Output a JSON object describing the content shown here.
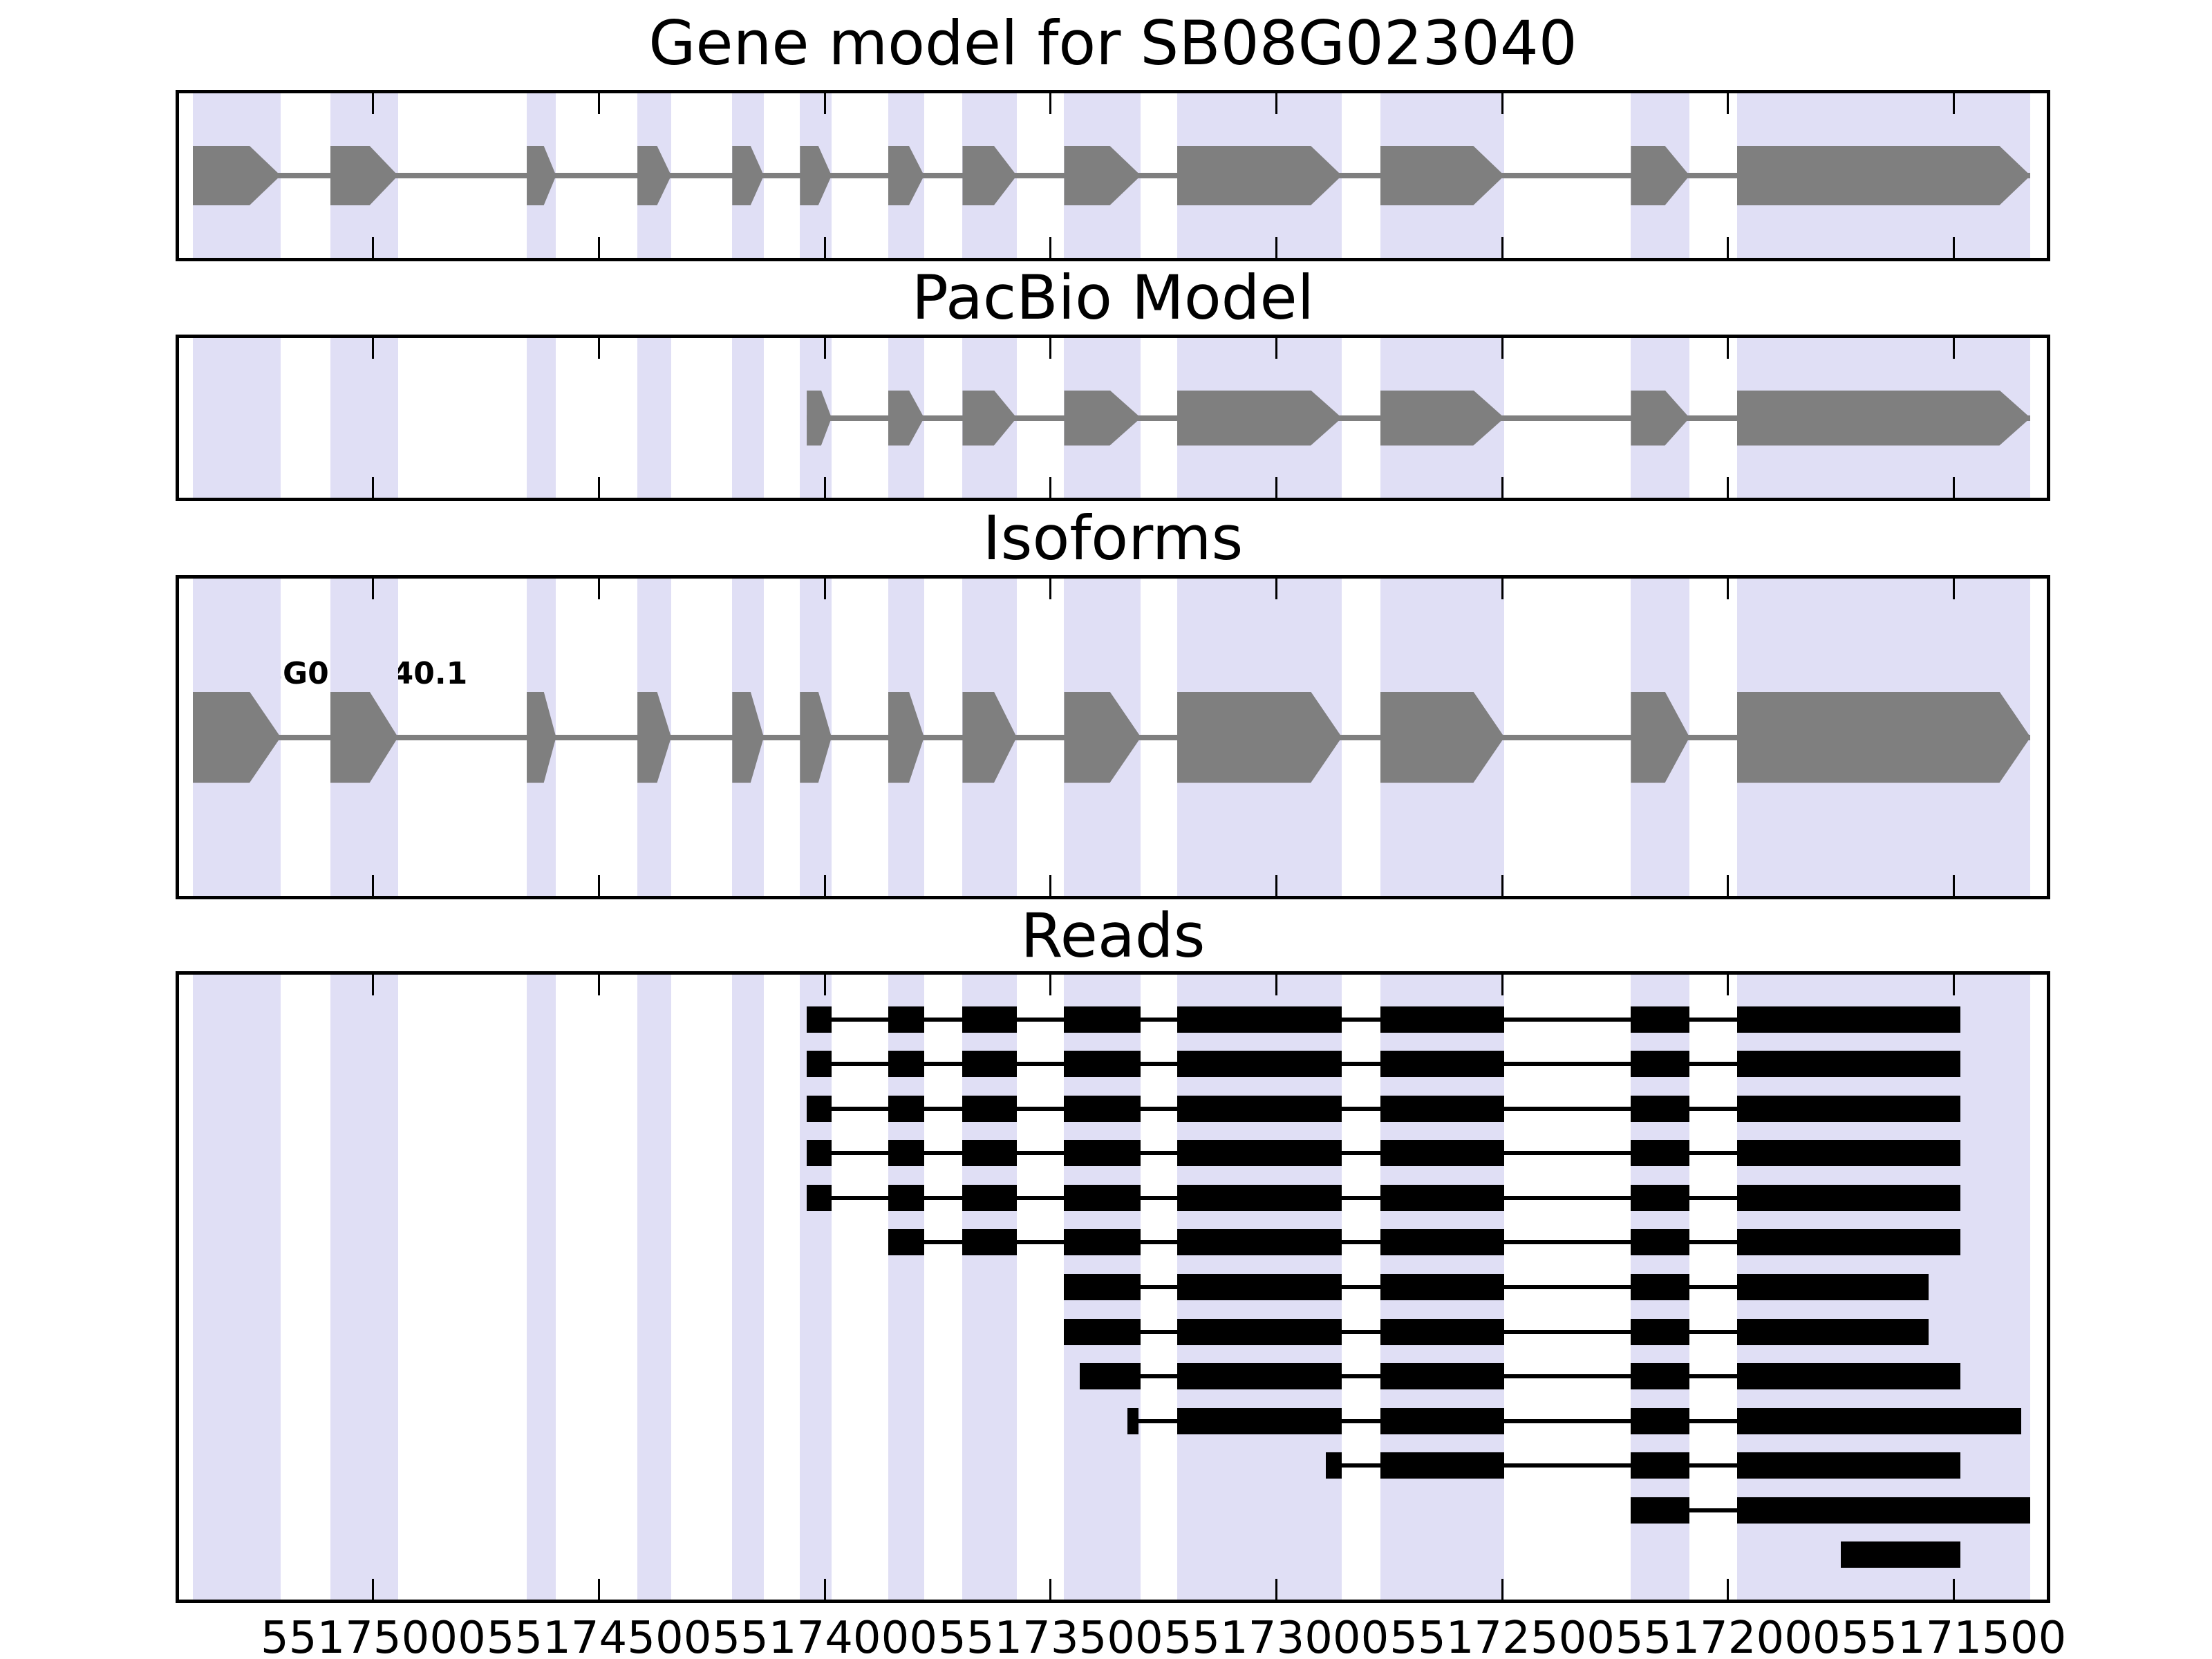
{
  "colors": {
    "exon_fill": "#7f7f7f",
    "intron_line": "#7f7f7f",
    "band_fill": "#e0dff5",
    "read_fill": "#000000",
    "spine": "#000000",
    "background": "#ffffff"
  },
  "chart_data": {
    "type": "other",
    "subtype": "genome-browser-gene-model-tracks",
    "arrow_direction": "right",
    "x_axis": {
      "range_left_bp": 55175430,
      "range_right_bp": 55171294,
      "direction": "coordinates-decrease-to-the-right",
      "tick_values": [
        55175000,
        55174500,
        55174000,
        55173500,
        55173000,
        55172500,
        55172000,
        55171500
      ],
      "tick_labels": [
        "55175000",
        "55174500",
        "55174000",
        "55173500",
        "55173000",
        "55172500",
        "55172000",
        "55171500"
      ]
    },
    "highlight_bands_bp": [
      [
        55175400,
        55175205
      ],
      [
        55175095,
        55174945
      ],
      [
        55174660,
        55174595
      ],
      [
        55174415,
        55174340
      ],
      [
        55174205,
        55174135
      ],
      [
        55174055,
        55173985
      ],
      [
        55173860,
        55173780
      ],
      [
        55173695,
        55173575
      ],
      [
        55173470,
        55173300
      ],
      [
        55173220,
        55172855
      ],
      [
        55172770,
        55172495
      ],
      [
        55172215,
        55172085
      ],
      [
        55171980,
        55171330
      ]
    ],
    "tracks": [
      {
        "title": "Gene model for SB08G023040",
        "kind": "gene-model",
        "exons_bp": [
          [
            55175400,
            55175205
          ],
          [
            55175095,
            55174945
          ],
          [
            55174660,
            55174595
          ],
          [
            55174415,
            55174340
          ],
          [
            55174205,
            55174135
          ],
          [
            55174055,
            55173985
          ],
          [
            55173860,
            55173780
          ],
          [
            55173695,
            55173575
          ],
          [
            55173470,
            55173300
          ],
          [
            55173220,
            55172855
          ],
          [
            55172770,
            55172495
          ],
          [
            55172215,
            55172085
          ],
          [
            55171980,
            55171330
          ]
        ]
      },
      {
        "title": "PacBio Model",
        "kind": "gene-model",
        "exons_bp": [
          [
            55174040,
            55173985
          ],
          [
            55173860,
            55173780
          ],
          [
            55173695,
            55173575
          ],
          [
            55173470,
            55173300
          ],
          [
            55173220,
            55172855
          ],
          [
            55172770,
            55172495
          ],
          [
            55172215,
            55172085
          ],
          [
            55171980,
            55171330
          ]
        ]
      },
      {
        "title": "Isoforms",
        "kind": "isoform-list",
        "isoforms": [
          {
            "label": "SB08G023040.1",
            "exons_bp": [
              [
                55175400,
                55175205
              ],
              [
                55175095,
                55174945
              ],
              [
                55174660,
                55174595
              ],
              [
                55174415,
                55174340
              ],
              [
                55174205,
                55174135
              ],
              [
                55174055,
                55173985
              ],
              [
                55173860,
                55173780
              ],
              [
                55173695,
                55173575
              ],
              [
                55173470,
                55173300
              ],
              [
                55173220,
                55172855
              ],
              [
                55172770,
                55172495
              ],
              [
                55172215,
                55172085
              ],
              [
                55171980,
                55171330
              ]
            ]
          }
        ]
      },
      {
        "title": "Reads",
        "kind": "read-alignments",
        "reads": [
          {
            "blocks_bp": [
              [
                55174040,
                55173985
              ],
              [
                55173860,
                55173780
              ],
              [
                55173695,
                55173575
              ],
              [
                55173470,
                55173300
              ],
              [
                55173220,
                55172855
              ],
              [
                55172770,
                55172495
              ],
              [
                55172215,
                55172085
              ],
              [
                55171980,
                55171485
              ]
            ]
          },
          {
            "blocks_bp": [
              [
                55174040,
                55173985
              ],
              [
                55173860,
                55173780
              ],
              [
                55173695,
                55173575
              ],
              [
                55173470,
                55173300
              ],
              [
                55173220,
                55172855
              ],
              [
                55172770,
                55172495
              ],
              [
                55172215,
                55172085
              ],
              [
                55171980,
                55171485
              ]
            ]
          },
          {
            "blocks_bp": [
              [
                55174040,
                55173985
              ],
              [
                55173860,
                55173780
              ],
              [
                55173695,
                55173575
              ],
              [
                55173470,
                55173300
              ],
              [
                55173220,
                55172855
              ],
              [
                55172770,
                55172495
              ],
              [
                55172215,
                55172085
              ],
              [
                55171980,
                55171485
              ]
            ]
          },
          {
            "blocks_bp": [
              [
                55174040,
                55173985
              ],
              [
                55173860,
                55173780
              ],
              [
                55173695,
                55173575
              ],
              [
                55173470,
                55173300
              ],
              [
                55173220,
                55172855
              ],
              [
                55172770,
                55172495
              ],
              [
                55172215,
                55172085
              ],
              [
                55171980,
                55171485
              ]
            ]
          },
          {
            "blocks_bp": [
              [
                55174040,
                55173985
              ],
              [
                55173860,
                55173780
              ],
              [
                55173695,
                55173575
              ],
              [
                55173470,
                55173300
              ],
              [
                55173220,
                55172855
              ],
              [
                55172770,
                55172495
              ],
              [
                55172215,
                55172085
              ],
              [
                55171980,
                55171485
              ]
            ]
          },
          {
            "blocks_bp": [
              [
                55173860,
                55173780
              ],
              [
                55173695,
                55173575
              ],
              [
                55173470,
                55173300
              ],
              [
                55173220,
                55172855
              ],
              [
                55172770,
                55172495
              ],
              [
                55172215,
                55172085
              ],
              [
                55171980,
                55171485
              ]
            ]
          },
          {
            "blocks_bp": [
              [
                55173470,
                55173300
              ],
              [
                55173220,
                55172855
              ],
              [
                55172770,
                55172495
              ],
              [
                55172215,
                55172085
              ],
              [
                55171980,
                55171555
              ]
            ]
          },
          {
            "blocks_bp": [
              [
                55173470,
                55173300
              ],
              [
                55173220,
                55172855
              ],
              [
                55172770,
                55172495
              ],
              [
                55172215,
                55172085
              ],
              [
                55171980,
                55171555
              ]
            ]
          },
          {
            "blocks_bp": [
              [
                55173435,
                55173300
              ],
              [
                55173220,
                55172855
              ],
              [
                55172770,
                55172495
              ],
              [
                55172215,
                55172085
              ],
              [
                55171980,
                55171485
              ]
            ]
          },
          {
            "blocks_bp": [
              [
                55173330,
                55173305
              ],
              [
                55173220,
                55172855
              ],
              [
                55172770,
                55172495
              ],
              [
                55172215,
                55172085
              ],
              [
                55171980,
                55171350
              ]
            ]
          },
          {
            "blocks_bp": [
              [
                55172890,
                55172855
              ],
              [
                55172770,
                55172495
              ],
              [
                55172215,
                55172085
              ],
              [
                55171980,
                55171485
              ]
            ]
          },
          {
            "blocks_bp": [
              [
                55172215,
                55172085
              ],
              [
                55171980,
                55171330
              ]
            ]
          },
          {
            "blocks_bp": [
              [
                55171750,
                55171485
              ]
            ]
          }
        ]
      }
    ]
  }
}
